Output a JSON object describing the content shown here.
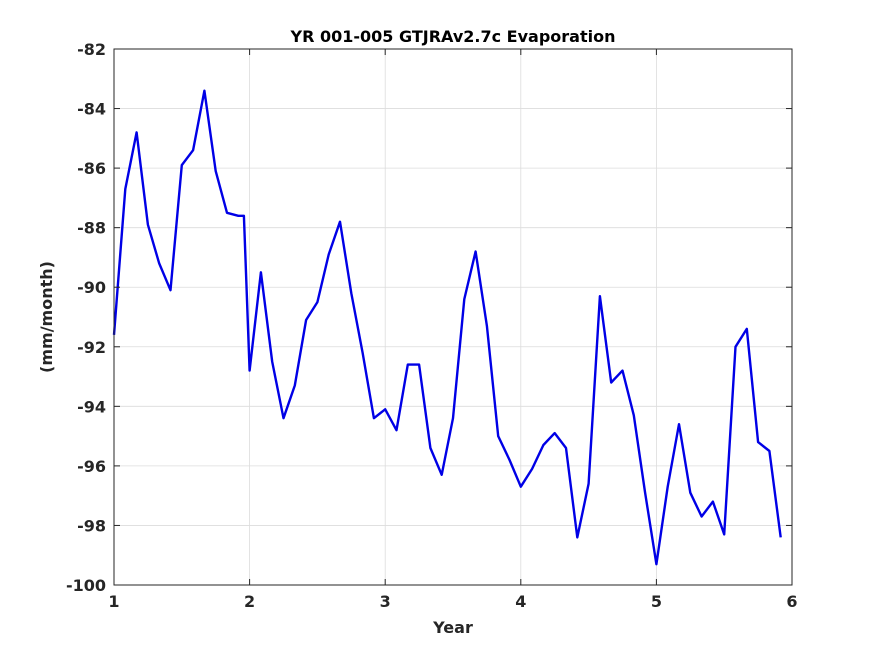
{
  "chart_data": {
    "type": "line",
    "title": "YR 001-005 GTJRAv2.7c Evaporation",
    "xlabel": "Year",
    "ylabel": "(mm/month)",
    "xlim": [
      1,
      6
    ],
    "ylim": [
      -100,
      -82
    ],
    "xticks": [
      1,
      2,
      3,
      4,
      5,
      6
    ],
    "yticks": [
      -100,
      -98,
      -96,
      -94,
      -92,
      -90,
      -88,
      -86,
      -84,
      -82
    ],
    "grid": true,
    "colors": {
      "line": "#0000e6"
    },
    "series": [
      {
        "x": [
          1.0,
          1.083,
          1.167,
          1.25,
          1.333,
          1.417,
          1.5,
          1.583,
          1.667,
          1.75,
          1.833,
          1.917,
          1.958,
          2.0,
          2.083,
          2.167,
          2.25,
          2.333,
          2.417,
          2.5,
          2.583,
          2.667,
          2.75,
          2.833,
          2.917,
          3.0,
          3.083,
          3.167,
          3.25,
          3.333,
          3.417,
          3.5,
          3.583,
          3.667,
          3.75,
          3.833,
          3.917,
          4.0,
          4.083,
          4.167,
          4.25,
          4.333,
          4.417,
          4.5,
          4.583,
          4.667,
          4.75,
          4.833,
          4.917,
          5.0,
          5.083,
          5.167,
          5.25,
          5.333,
          5.417,
          5.5,
          5.583,
          5.667,
          5.75,
          5.833,
          5.917
        ],
        "y": [
          -91.6,
          -86.7,
          -84.8,
          -87.9,
          -89.2,
          -90.1,
          -85.9,
          -85.4,
          -83.4,
          -86.1,
          -87.5,
          -87.6,
          -87.6,
          -92.8,
          -89.5,
          -92.5,
          -94.4,
          -93.3,
          -91.1,
          -90.5,
          -88.9,
          -87.8,
          -90.2,
          -92.2,
          -94.4,
          -94.1,
          -94.8,
          -92.6,
          -92.6,
          -95.4,
          -96.3,
          -94.4,
          -90.4,
          -88.8,
          -91.3,
          -95.0,
          -95.8,
          -96.7,
          -96.1,
          -95.3,
          -94.9,
          -95.4,
          -98.4,
          -96.6,
          -90.3,
          -93.2,
          -92.8,
          -94.3,
          -96.9,
          -99.3,
          -96.7,
          -94.6,
          -96.9,
          -97.7,
          -97.2,
          -98.3,
          -92.0,
          -91.4,
          -95.2,
          -95.5,
          -98.4
        ]
      }
    ]
  }
}
